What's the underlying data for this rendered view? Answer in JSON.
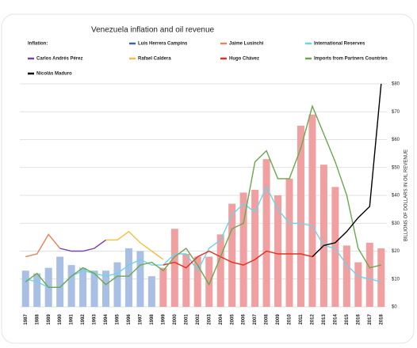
{
  "chart_data": {
    "type": "bar_line",
    "title": "Venezuela inflation and oil revenue",
    "legend_title": "Inflation:",
    "y_label": "BILLIONS OF DOLLARS IN OIL REVENUE",
    "categories": [
      "1987",
      "1988",
      "1989",
      "1990",
      "1991",
      "1992",
      "1993",
      "1994",
      "1995",
      "1996",
      "1997",
      "1998",
      "1999",
      "2000",
      "2001",
      "2002",
      "2003",
      "2004",
      "2005",
      "2006",
      "2007",
      "2008",
      "2009",
      "2010",
      "2011",
      "2012",
      "2013",
      "2014",
      "2015",
      "2016",
      "2017",
      "2018"
    ],
    "bars": {
      "values": [
        13,
        12,
        14,
        18,
        15,
        14,
        13,
        13,
        16,
        21,
        20,
        11,
        14,
        28,
        19,
        18,
        18,
        26,
        37,
        41,
        42,
        53,
        40,
        46,
        65,
        69,
        51,
        43,
        22,
        16,
        23,
        21
      ],
      "colors": [
        "#a9c0e4",
        "#a9c0e4",
        "#a9c0e4",
        "#a9c0e4",
        "#a9c0e4",
        "#a9c0e4",
        "#a9c0e4",
        "#a9c0e4",
        "#a9c0e4",
        "#a9c0e4",
        "#a9c0e4",
        "#a9c0e4",
        "#f0a0a0",
        "#f0a0a0",
        "#f0a0a0",
        "#f0a0a0",
        "#f0a0a0",
        "#f0a0a0",
        "#f0a0a0",
        "#f0a0a0",
        "#f0a0a0",
        "#f0a0a0",
        "#f0a0a0",
        "#f0a0a0",
        "#f0a0a0",
        "#f0a0a0",
        "#f0a0a0",
        "#f0a0a0",
        "#f0a0a0",
        "#f0a0a0",
        "#f0a0a0",
        "#f0a0a0"
      ]
    },
    "series": [
      {
        "name": "Luis Herrera Campins",
        "color": "#3a63b0",
        "values": [
          null,
          null,
          null,
          null,
          null,
          null,
          null,
          null,
          null,
          null,
          null,
          null,
          null,
          null,
          null,
          null,
          null,
          null,
          null,
          null,
          null,
          null,
          null,
          null,
          null,
          null,
          null,
          null,
          null,
          null,
          null,
          null
        ]
      },
      {
        "name": "Jaime Lusinchi",
        "color": "#e8845a",
        "values": [
          18,
          19,
          26,
          21,
          null,
          null,
          null,
          null,
          null,
          null,
          null,
          null,
          null,
          null,
          null,
          null,
          null,
          null,
          null,
          null,
          null,
          null,
          null,
          null,
          null,
          null,
          null,
          null,
          null,
          null,
          null,
          null
        ]
      },
      {
        "name": "International Reserves",
        "color": "#6fd3e8",
        "values": [
          10,
          9,
          7,
          7,
          11,
          13,
          12,
          11,
          12,
          15,
          17,
          15,
          15,
          19,
          19,
          13,
          21,
          24,
          33,
          37,
          34,
          43,
          35,
          30,
          30,
          29,
          22,
          21,
          15,
          11,
          10,
          9
        ]
      },
      {
        "name": "Carlos Andrés Pérez",
        "color": "#7a3fa8",
        "values": [
          null,
          null,
          null,
          21,
          20,
          20,
          21,
          24,
          null,
          null,
          null,
          null,
          null,
          null,
          null,
          null,
          null,
          null,
          null,
          null,
          null,
          null,
          null,
          null,
          null,
          null,
          null,
          null,
          null,
          null,
          null,
          null
        ]
      },
      {
        "name": "Rafael Caldera",
        "color": "#f0c040",
        "values": [
          null,
          null,
          null,
          null,
          null,
          null,
          null,
          24,
          24,
          27,
          23,
          20,
          17,
          null,
          null,
          null,
          null,
          null,
          null,
          null,
          null,
          null,
          null,
          null,
          null,
          null,
          null,
          null,
          null,
          null,
          null,
          null
        ]
      },
      {
        "name": "Hugo Chávez",
        "color": "#e03020",
        "values": [
          null,
          null,
          null,
          null,
          null,
          null,
          null,
          null,
          null,
          null,
          null,
          null,
          15,
          16,
          14,
          18,
          20,
          18,
          16,
          15,
          17,
          20,
          19,
          19,
          19,
          18,
          null,
          null,
          null,
          null,
          null,
          null
        ]
      },
      {
        "name": "Imports from Partners Countries",
        "color": "#6aa84f",
        "values": [
          9,
          12,
          7,
          7,
          11,
          14,
          12,
          8,
          11,
          11,
          15,
          16,
          13,
          18,
          21,
          15,
          8,
          18,
          28,
          30,
          52,
          56,
          46,
          46,
          57,
          72,
          62,
          52,
          40,
          21,
          14,
          15
        ]
      },
      {
        "name": "Nicolás Maduro",
        "color": "#000000",
        "values": [
          null,
          null,
          null,
          null,
          null,
          null,
          null,
          null,
          null,
          null,
          null,
          null,
          null,
          null,
          null,
          null,
          null,
          null,
          null,
          null,
          null,
          null,
          null,
          null,
          null,
          18,
          22,
          23,
          27,
          32,
          36,
          80
        ]
      }
    ],
    "ylim": [
      0,
      80
    ],
    "yticks": [
      {
        "value": 0,
        "label": "$0"
      },
      {
        "value": 10,
        "label": "$10"
      },
      {
        "value": 20,
        "label": "$20"
      },
      {
        "value": 30,
        "label": "$30"
      },
      {
        "value": 40,
        "label": "$40"
      },
      {
        "value": 50,
        "label": "$50"
      },
      {
        "value": 60,
        "label": "$60"
      },
      {
        "value": 70,
        "label": "$70"
      },
      {
        "value": 80,
        "label": "$80"
      }
    ],
    "grid": true
  }
}
